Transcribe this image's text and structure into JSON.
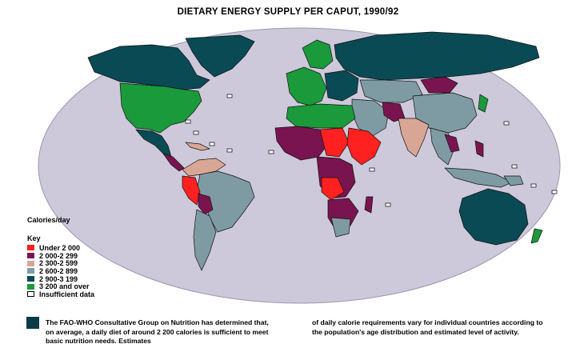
{
  "title": "DIETARY ENERGY SUPPLY PER CAPUT, 1990/92",
  "legend": {
    "calories_label": "Calories/day",
    "key_label": "Key",
    "items": [
      {
        "label": "Under 2 000",
        "color": "#ff2020"
      },
      {
        "label": "2 000-2 299",
        "color": "#7a1450"
      },
      {
        "label": "2 300-2 599",
        "color": "#d9a696"
      },
      {
        "label": "2 600-2 899",
        "color": "#7e9ba3"
      },
      {
        "label": "2 900-3 199",
        "color": "#0a4a55"
      },
      {
        "label": "3 200 and over",
        "color": "#1a9a3a"
      },
      {
        "label": "Insufficient data",
        "color": "#ffffff"
      }
    ]
  },
  "colors": {
    "ocean": "#cdc8da",
    "border": "#000000"
  },
  "note": {
    "left": "The FAO-WHO Consultative Group on Nutrition has determined that, on average, a daily diet of around 2 200 calories is sufficient to meet basic nutrition needs. Estimates",
    "right": "of daily calorie requirements vary for individual countries according to the population's age distribution and estimated level of activity."
  }
}
